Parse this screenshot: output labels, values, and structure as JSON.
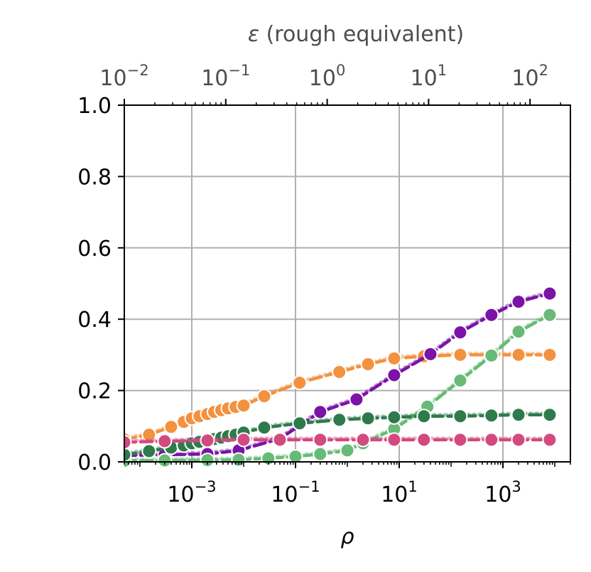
{
  "chart_data": {
    "type": "line",
    "xlabel": "ρ",
    "x_scale": "log",
    "xlim": [
      5e-05,
      20000
    ],
    "x_ticks": [
      0.001,
      0.1,
      10,
      1000
    ],
    "x_tick_labels": [
      {
        "base": "10",
        "exp": "−3"
      },
      {
        "base": "10",
        "exp": "−1"
      },
      {
        "base": "10",
        "exp": "1"
      },
      {
        "base": "10",
        "exp": "3"
      }
    ],
    "top_xlabel": {
      "symbol": "ε",
      "rest": " (rough equivalent)"
    },
    "top_x_scale": "log",
    "top_xlim": [
      0.01,
      250
    ],
    "top_x_ticks": [
      0.01,
      0.1,
      1,
      10,
      100
    ],
    "top_x_tick_labels": [
      {
        "base": "10",
        "exp": "−2"
      },
      {
        "base": "10",
        "exp": "−1"
      },
      {
        "base": "10",
        "exp": "0"
      },
      {
        "base": "10",
        "exp": "1"
      },
      {
        "base": "10",
        "exp": "2"
      }
    ],
    "ylim": [
      0,
      1
    ],
    "y_ticks": [
      "0.0",
      "0.2",
      "0.4",
      "0.6",
      "0.8",
      "1.0"
    ],
    "grid": true,
    "series": [
      {
        "color": "#f4913f",
        "x": [
          5e-05,
          0.00015,
          0.0004,
          0.0007,
          0.001,
          0.0014,
          0.002,
          0.0027,
          0.0037,
          0.005,
          0.007,
          0.01,
          0.025,
          0.12,
          0.7,
          2.5,
          8,
          30,
          150,
          600,
          2000,
          8000
        ],
        "y": [
          0.063,
          0.076,
          0.098,
          0.112,
          0.122,
          0.128,
          0.134,
          0.14,
          0.145,
          0.15,
          0.154,
          0.158,
          0.184,
          0.222,
          0.252,
          0.274,
          0.29,
          0.296,
          0.3,
          0.3,
          0.3,
          0.3
        ]
      },
      {
        "color": "#7b13a6",
        "x": [
          5e-05,
          0.0003,
          0.002,
          0.008,
          0.05,
          0.3,
          1.5,
          8,
          40,
          150,
          600,
          2000,
          8000
        ],
        "y": [
          0.018,
          0.02,
          0.022,
          0.032,
          0.065,
          0.14,
          0.175,
          0.243,
          0.302,
          0.363,
          0.412,
          0.449,
          0.472
        ]
      },
      {
        "color": "#68bb76",
        "x": [
          5e-05,
          0.0003,
          0.002,
          0.008,
          0.03,
          0.1,
          0.3,
          1,
          2,
          8,
          35,
          150,
          600,
          2000,
          8000
        ],
        "y": [
          0.003,
          0.004,
          0.005,
          0.006,
          0.01,
          0.015,
          0.022,
          0.032,
          0.052,
          0.092,
          0.155,
          0.228,
          0.298,
          0.365,
          0.412
        ]
      },
      {
        "color": "#2f7a4d",
        "x": [
          5e-05,
          0.00015,
          0.0004,
          0.0007,
          0.001,
          0.0014,
          0.002,
          0.0027,
          0.0037,
          0.005,
          0.007,
          0.01,
          0.025,
          0.12,
          0.7,
          2.5,
          8,
          30,
          150,
          600,
          2000,
          8000
        ],
        "y": [
          0.02,
          0.03,
          0.04,
          0.046,
          0.052,
          0.056,
          0.06,
          0.064,
          0.068,
          0.072,
          0.076,
          0.082,
          0.096,
          0.108,
          0.118,
          0.122,
          0.125,
          0.128,
          0.128,
          0.13,
          0.132,
          0.132
        ]
      },
      {
        "color": "#d24a7f",
        "x": [
          5e-05,
          0.0003,
          0.002,
          0.01,
          0.05,
          0.3,
          2,
          8,
          30,
          150,
          600,
          2000,
          8000
        ],
        "y": [
          0.055,
          0.058,
          0.06,
          0.062,
          0.062,
          0.062,
          0.062,
          0.062,
          0.062,
          0.062,
          0.062,
          0.062,
          0.062
        ]
      }
    ]
  }
}
